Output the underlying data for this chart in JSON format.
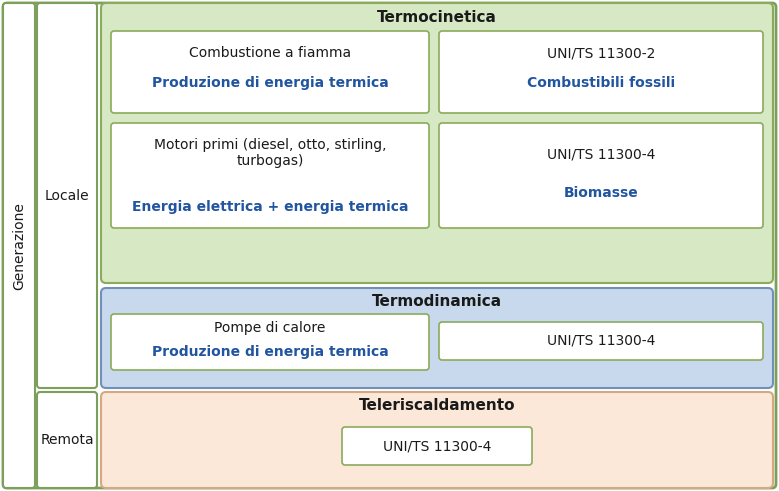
{
  "fig_width": 7.79,
  "fig_height": 4.91,
  "dpi": 100,
  "bg_color": "#ffffff",
  "green_bg": "#d7e8c4",
  "blue_bg": "#c9d9ed",
  "peach_bg": "#fce8d8",
  "white_box": "#ffffff",
  "blue_text": "#2255a0",
  "dark_text": "#1a1a1a",
  "edge_green": "#8aab5a",
  "edge_blue": "#7090b8",
  "edge_peach": "#d4a882",
  "edge_outer": "#7ba05b",
  "sections": {
    "generazione_label": "Generazione",
    "locale_label": "Locale",
    "remota_label": "Remota",
    "termocinetica_title": "Termocinetica",
    "termodinamica_title": "Termodinamica",
    "teleriscaldamento_title": "Teleriscaldamento",
    "box1_line1": "Combustione a fiamma",
    "box1_line2": "Produzione di energia termica",
    "box2_line1": "UNI/TS 11300-2",
    "box2_line2": "Combustibili fossili",
    "box3_line1": "Motori primi (diesel, otto, stirling,\nturbogas)",
    "box3_line2": "Energia elettrica + energia termica",
    "box4_line1": "UNI/TS 11300-4",
    "box4_line2": "Biomasse",
    "box5_line1": "Pompe di calore",
    "box5_line2": "Produzione di energia termica",
    "box6_line1": "UNI/TS 11300-4",
    "box7_line1": "UNI/TS 11300-4"
  }
}
